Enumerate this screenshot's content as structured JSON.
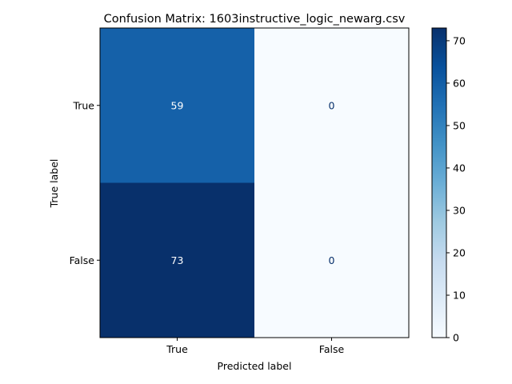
{
  "chart_data": {
    "type": "heatmap",
    "title": "Confusion Matrix: 1603instructive_logic_newarg.csv",
    "xlabel": "Predicted label",
    "ylabel": "True label",
    "x_categories": [
      "True",
      "False"
    ],
    "y_categories": [
      "True",
      "False"
    ],
    "values": [
      [
        59,
        0
      ],
      [
        73,
        0
      ]
    ],
    "colormap": "Blues",
    "colorbar": {
      "min": 0,
      "max": 73,
      "ticks": [
        0,
        10,
        20,
        30,
        40,
        50,
        60,
        70
      ]
    },
    "cell_colors": [
      [
        "#1561a9",
        "#f7fbff"
      ],
      [
        "#08306b",
        "#f7fbff"
      ]
    ],
    "label_colors": [
      [
        "#ffffff",
        "#08306b"
      ],
      [
        "#ffffff",
        "#08306b"
      ]
    ]
  }
}
